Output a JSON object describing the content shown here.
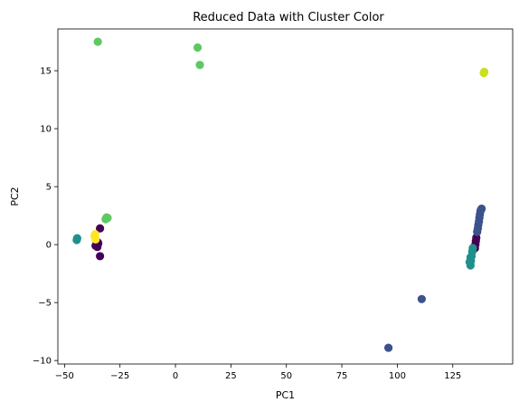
{
  "chart_data": {
    "type": "scatter",
    "title": "Reduced Data with Cluster Color",
    "xlabel": "PC1",
    "ylabel": "PC2",
    "xlim": [
      -53,
      152
    ],
    "ylim": [
      -10.3,
      18.6
    ],
    "xticks": [
      -50,
      -25,
      0,
      25,
      50,
      75,
      100,
      125
    ],
    "yticks": [
      -10,
      -5,
      0,
      5,
      10,
      15
    ],
    "grid": false,
    "legend": "none",
    "marker_radius_note": "circles",
    "series": [
      {
        "color": "#440154",
        "points": [
          [
            -35.5,
            0.0
          ],
          [
            -35.0,
            0.2
          ],
          [
            -36.0,
            -0.1
          ],
          [
            -35.2,
            -0.2
          ],
          [
            -34.8,
            0.1
          ],
          [
            -34.0,
            1.4
          ],
          [
            -34.0,
            -1.0
          ],
          [
            -35.6,
            0.3
          ],
          [
            135.0,
            -0.3
          ],
          [
            135.2,
            0.0
          ],
          [
            135.4,
            0.3
          ],
          [
            135.6,
            0.6
          ]
        ]
      },
      {
        "color": "#3b528b",
        "points": [
          [
            96.0,
            -8.9
          ],
          [
            111.0,
            -4.7
          ],
          [
            136.0,
            1.1
          ],
          [
            136.3,
            1.4
          ],
          [
            136.5,
            1.7
          ],
          [
            136.8,
            2.0
          ],
          [
            137.0,
            2.3
          ],
          [
            137.2,
            2.6
          ],
          [
            137.5,
            2.9
          ],
          [
            137.7,
            3.0
          ],
          [
            138.0,
            3.1
          ]
        ]
      },
      {
        "color": "#21908c",
        "points": [
          [
            -44.5,
            0.4
          ],
          [
            -44.3,
            0.55
          ],
          [
            133.0,
            -1.8
          ],
          [
            133.2,
            -1.4
          ],
          [
            133.5,
            -1.0
          ],
          [
            133.8,
            -0.6
          ],
          [
            134.0,
            -0.3
          ],
          [
            133.0,
            -1.1
          ],
          [
            132.6,
            -1.5
          ]
        ]
      },
      {
        "color": "#5ec962",
        "points": [
          [
            -35.0,
            17.5
          ],
          [
            10.0,
            17.0
          ],
          [
            11.0,
            15.5
          ],
          [
            -31.5,
            2.2
          ],
          [
            -31.0,
            2.35
          ],
          [
            -30.6,
            2.3
          ]
        ]
      },
      {
        "color": "#c8e020",
        "points": [
          [
            139.0,
            14.8
          ],
          [
            139.2,
            14.9
          ]
        ]
      },
      {
        "color": "#fde725",
        "points": [
          [
            -36.5,
            0.7
          ],
          [
            -36.0,
            0.45
          ],
          [
            -36.2,
            0.9
          ]
        ]
      }
    ]
  }
}
